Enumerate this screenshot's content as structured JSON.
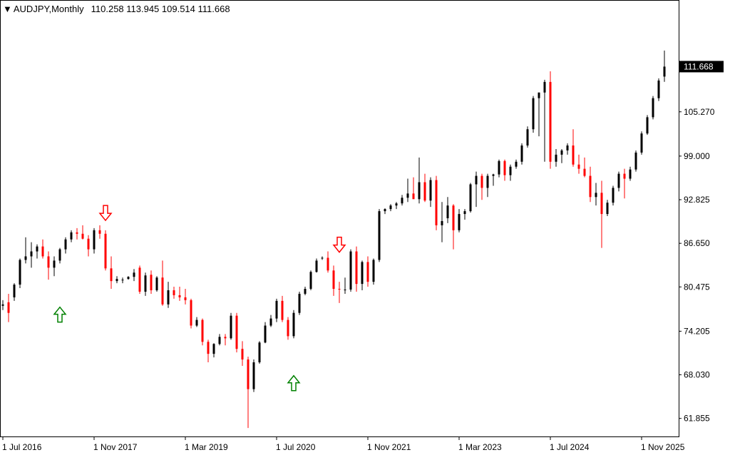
{
  "header": {
    "symbol": "AUDJPY,Monthly",
    "ohlc": "110.258 113.945 109.514 111.668"
  },
  "colors": {
    "bull": "#000000",
    "bear": "#ff0000",
    "doji": "#00cc00",
    "buy_arrow": "#008000",
    "sell_arrow": "#ff0000",
    "price_tag_bg": "#000000",
    "price_tag_fg": "#ffffff"
  },
  "chart_data": {
    "type": "candlestick",
    "title": "AUDJPY,Monthly",
    "ylim": [
      59.3,
      121.0
    ],
    "y_ticks": [
      "61.855",
      "68.030",
      "74.205",
      "80.475",
      "86.650",
      "92.825",
      "99.000",
      "105.270"
    ],
    "current_price": "111.668",
    "x_ticks": [
      "1 Jul 2016",
      "1 Nov 2017",
      "1 Mar 2019",
      "1 Jul 2020",
      "1 Nov 2021",
      "1 Mar 2023",
      "1 Jul 2024",
      "1 Nov 2025"
    ],
    "x_tick_index": [
      0,
      16,
      32,
      48,
      64,
      80,
      96,
      112
    ],
    "candles": [
      [
        77.8,
        78.6,
        77.2,
        78.0
      ],
      [
        78.3,
        79.5,
        75.5,
        76.8
      ],
      [
        79.0,
        81.0,
        78.5,
        80.8
      ],
      [
        80.8,
        84.5,
        80.3,
        84.3
      ],
      [
        84.3,
        87.5,
        83.8,
        84.8
      ],
      [
        84.8,
        86.8,
        83.2,
        85.5
      ],
      [
        85.5,
        86.5,
        84.5,
        86.2
      ],
      [
        86.2,
        87.2,
        84.5,
        84.8
      ],
      [
        84.8,
        85.5,
        81.5,
        83.2
      ],
      [
        83.2,
        84.8,
        82.0,
        84.2
      ],
      [
        84.2,
        86.0,
        83.8,
        85.8
      ],
      [
        85.8,
        87.5,
        85.2,
        87.2
      ],
      [
        87.2,
        88.5,
        86.8,
        88.2
      ],
      [
        88.2,
        88.8,
        87.2,
        88.0
      ],
      [
        88.0,
        89.2,
        87.2,
        87.3
      ],
      [
        87.3,
        87.8,
        84.8,
        85.8
      ],
      [
        85.8,
        88.8,
        85.2,
        88.5
      ],
      [
        88.5,
        89.2,
        87.3,
        88.0
      ],
      [
        88.0,
        88.5,
        82.8,
        83.1
      ],
      [
        83.1,
        84.8,
        80.2,
        81.3
      ],
      [
        81.3,
        82.0,
        81.0,
        81.6
      ],
      [
        81.5,
        81.8,
        81.0,
        81.5
      ],
      [
        81.6,
        82.0,
        81.5,
        81.9
      ],
      [
        81.9,
        83.0,
        81.3,
        82.5
      ],
      [
        83.2,
        83.5,
        79.5,
        79.8
      ],
      [
        79.8,
        82.5,
        79.2,
        82.1
      ],
      [
        82.2,
        82.8,
        79.5,
        80.0
      ],
      [
        80.0,
        82.0,
        79.8,
        81.8
      ],
      [
        81.8,
        84.2,
        77.8,
        78.0
      ],
      [
        78.0,
        81.2,
        77.5,
        80.0
      ],
      [
        80.0,
        80.5,
        78.8,
        79.3
      ],
      [
        79.3,
        80.5,
        78.5,
        79.0
      ],
      [
        79.0,
        80.2,
        78.0,
        78.6
      ],
      [
        78.6,
        78.8,
        74.6,
        75.0
      ],
      [
        75.0,
        76.2,
        74.8,
        75.8
      ],
      [
        75.8,
        76.0,
        72.2,
        72.7
      ],
      [
        72.7,
        73.0,
        69.8,
        71.0
      ],
      [
        71.0,
        72.5,
        70.5,
        72.4
      ],
      [
        72.4,
        73.8,
        72.2,
        73.4
      ],
      [
        73.4,
        73.8,
        72.2,
        73.2
      ],
      [
        73.2,
        76.8,
        73.0,
        76.4
      ],
      [
        76.4,
        76.8,
        71.2,
        71.7
      ],
      [
        71.7,
        72.8,
        69.3,
        70.2
      ],
      [
        70.2,
        70.6,
        60.5,
        66.0
      ],
      [
        66.0,
        70.2,
        65.6,
        69.8
      ],
      [
        69.8,
        72.8,
        69.6,
        72.6
      ],
      [
        72.6,
        75.5,
        72.5,
        75.0
      ],
      [
        75.0,
        76.5,
        74.8,
        76.0
      ],
      [
        76.0,
        78.8,
        75.5,
        78.5
      ],
      [
        78.5,
        79.2,
        75.5,
        75.8
      ],
      [
        75.8,
        76.2,
        73.0,
        73.5
      ],
      [
        73.5,
        77.2,
        73.2,
        76.8
      ],
      [
        76.8,
        79.8,
        76.5,
        79.5
      ],
      [
        79.5,
        80.5,
        79.3,
        80.2
      ],
      [
        80.2,
        82.8,
        80.0,
        82.6
      ],
      [
        82.6,
        84.5,
        82.5,
        84.2
      ],
      [
        84.5,
        84.8,
        84.3,
        84.6
      ],
      [
        84.6,
        85.5,
        82.5,
        82.8
      ],
      [
        82.8,
        83.5,
        79.2,
        80.2
      ],
      [
        80.2,
        81.2,
        78.2,
        80.1
      ],
      [
        80.1,
        81.8,
        79.5,
        80.1
      ],
      [
        80.1,
        85.8,
        79.8,
        85.5
      ],
      [
        85.5,
        86.2,
        79.8,
        80.9
      ],
      [
        80.9,
        84.2,
        80.0,
        84.0
      ],
      [
        84.0,
        84.8,
        80.5,
        81.2
      ],
      [
        81.2,
        84.5,
        80.8,
        84.3
      ],
      [
        84.3,
        91.5,
        84.0,
        91.2
      ],
      [
        91.2,
        91.6,
        90.8,
        91.5
      ],
      [
        91.5,
        92.2,
        91.2,
        92.0
      ],
      [
        92.0,
        92.5,
        91.5,
        92.3
      ],
      [
        92.3,
        93.5,
        92.0,
        93.1
      ],
      [
        93.1,
        95.8,
        92.5,
        93.7
      ],
      [
        93.7,
        96.0,
        93.2,
        92.9
      ],
      [
        92.9,
        98.8,
        92.3,
        95.3
      ],
      [
        95.3,
        96.5,
        92.5,
        92.7
      ],
      [
        92.7,
        96.0,
        91.8,
        95.6
      ],
      [
        95.6,
        96.2,
        88.5,
        89.2
      ],
      [
        89.2,
        92.5,
        86.8,
        89.8
      ],
      [
        90.2,
        93.2,
        89.5,
        92.0
      ],
      [
        92.0,
        92.2,
        85.8,
        88.5
      ],
      [
        88.5,
        91.5,
        88.2,
        90.8
      ],
      [
        90.8,
        91.5,
        90.0,
        91.2
      ],
      [
        91.2,
        95.2,
        91.0,
        95.0
      ],
      [
        95.0,
        96.8,
        91.8,
        96.2
      ],
      [
        96.2,
        96.5,
        92.8,
        94.5
      ],
      [
        94.5,
        96.5,
        93.2,
        96.2
      ],
      [
        96.2,
        96.5,
        94.8,
        96.4
      ],
      [
        96.4,
        98.5,
        96.0,
        98.3
      ],
      [
        98.3,
        98.5,
        95.5,
        96.3
      ],
      [
        96.3,
        97.8,
        95.5,
        97.5
      ],
      [
        97.5,
        98.5,
        97.2,
        98.2
      ],
      [
        98.2,
        100.8,
        97.8,
        100.5
      ],
      [
        100.5,
        103.2,
        100.2,
        102.8
      ],
      [
        102.8,
        107.5,
        102.3,
        107.2
      ],
      [
        107.2,
        108.0,
        101.8,
        108.0
      ],
      [
        108.0,
        109.8,
        98.2,
        109.5
      ],
      [
        109.5,
        111.0,
        97.2,
        98.2
      ],
      [
        98.2,
        100.0,
        97.5,
        99.2
      ],
      [
        99.2,
        100.0,
        98.0,
        99.8
      ],
      [
        99.8,
        100.8,
        99.2,
        100.5
      ],
      [
        100.5,
        102.8,
        97.5,
        97.8
      ],
      [
        97.8,
        99.2,
        96.5,
        97.2
      ],
      [
        97.2,
        98.8,
        96.0,
        96.2
      ],
      [
        96.2,
        97.5,
        92.5,
        93.2
      ],
      [
        93.2,
        95.2,
        92.0,
        93.8
      ],
      [
        93.8,
        95.5,
        86.0,
        90.8
      ],
      [
        90.8,
        92.8,
        90.5,
        92.4
      ],
      [
        92.4,
        94.8,
        92.0,
        94.5
      ],
      [
        94.5,
        96.8,
        94.0,
        96.5
      ],
      [
        96.5,
        97.2,
        93.0,
        95.8
      ],
      [
        95.8,
        97.5,
        95.5,
        97.1
      ],
      [
        97.1,
        99.8,
        96.8,
        99.5
      ],
      [
        99.5,
        102.5,
        99.2,
        102.2
      ],
      [
        102.2,
        104.8,
        102.0,
        104.5
      ],
      [
        104.5,
        107.5,
        104.2,
        107.2
      ],
      [
        107.2,
        110.0,
        106.8,
        109.7
      ],
      [
        110.258,
        113.945,
        109.514,
        111.668
      ]
    ],
    "arrows": [
      {
        "type": "buy",
        "index": 10,
        "price": 76.5
      },
      {
        "type": "sell",
        "index": 18,
        "price": 91.0
      },
      {
        "type": "buy",
        "index": 51,
        "price": 66.8
      },
      {
        "type": "sell",
        "index": 59,
        "price": 86.5
      }
    ]
  }
}
